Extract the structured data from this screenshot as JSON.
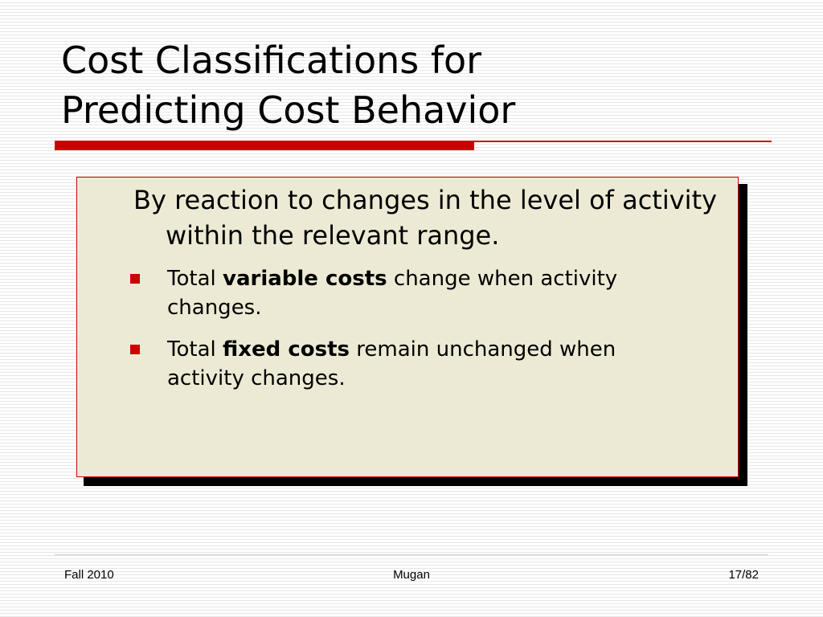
{
  "slide": {
    "title_line1": "Cost Classifications for",
    "title_line2": "Predicting Cost Behavior",
    "lead": "By reaction to changes in the level of activity within the relevant range.",
    "bullets": [
      {
        "prefix": "Total ",
        "emphasis": "variable costs",
        "suffix": " change when activity changes."
      },
      {
        "prefix": "Total ",
        "emphasis": "fixed costs",
        "suffix": " remain unchanged when activity changes."
      }
    ]
  },
  "footer": {
    "left": "Fall 2010",
    "center": "Mugan",
    "right": "17/82"
  },
  "colors": {
    "accent": "#cc0000",
    "box_fill": "#ecead4",
    "box_shadow": "#000000"
  },
  "icons": {
    "bullet": "square-bullet-icon"
  }
}
